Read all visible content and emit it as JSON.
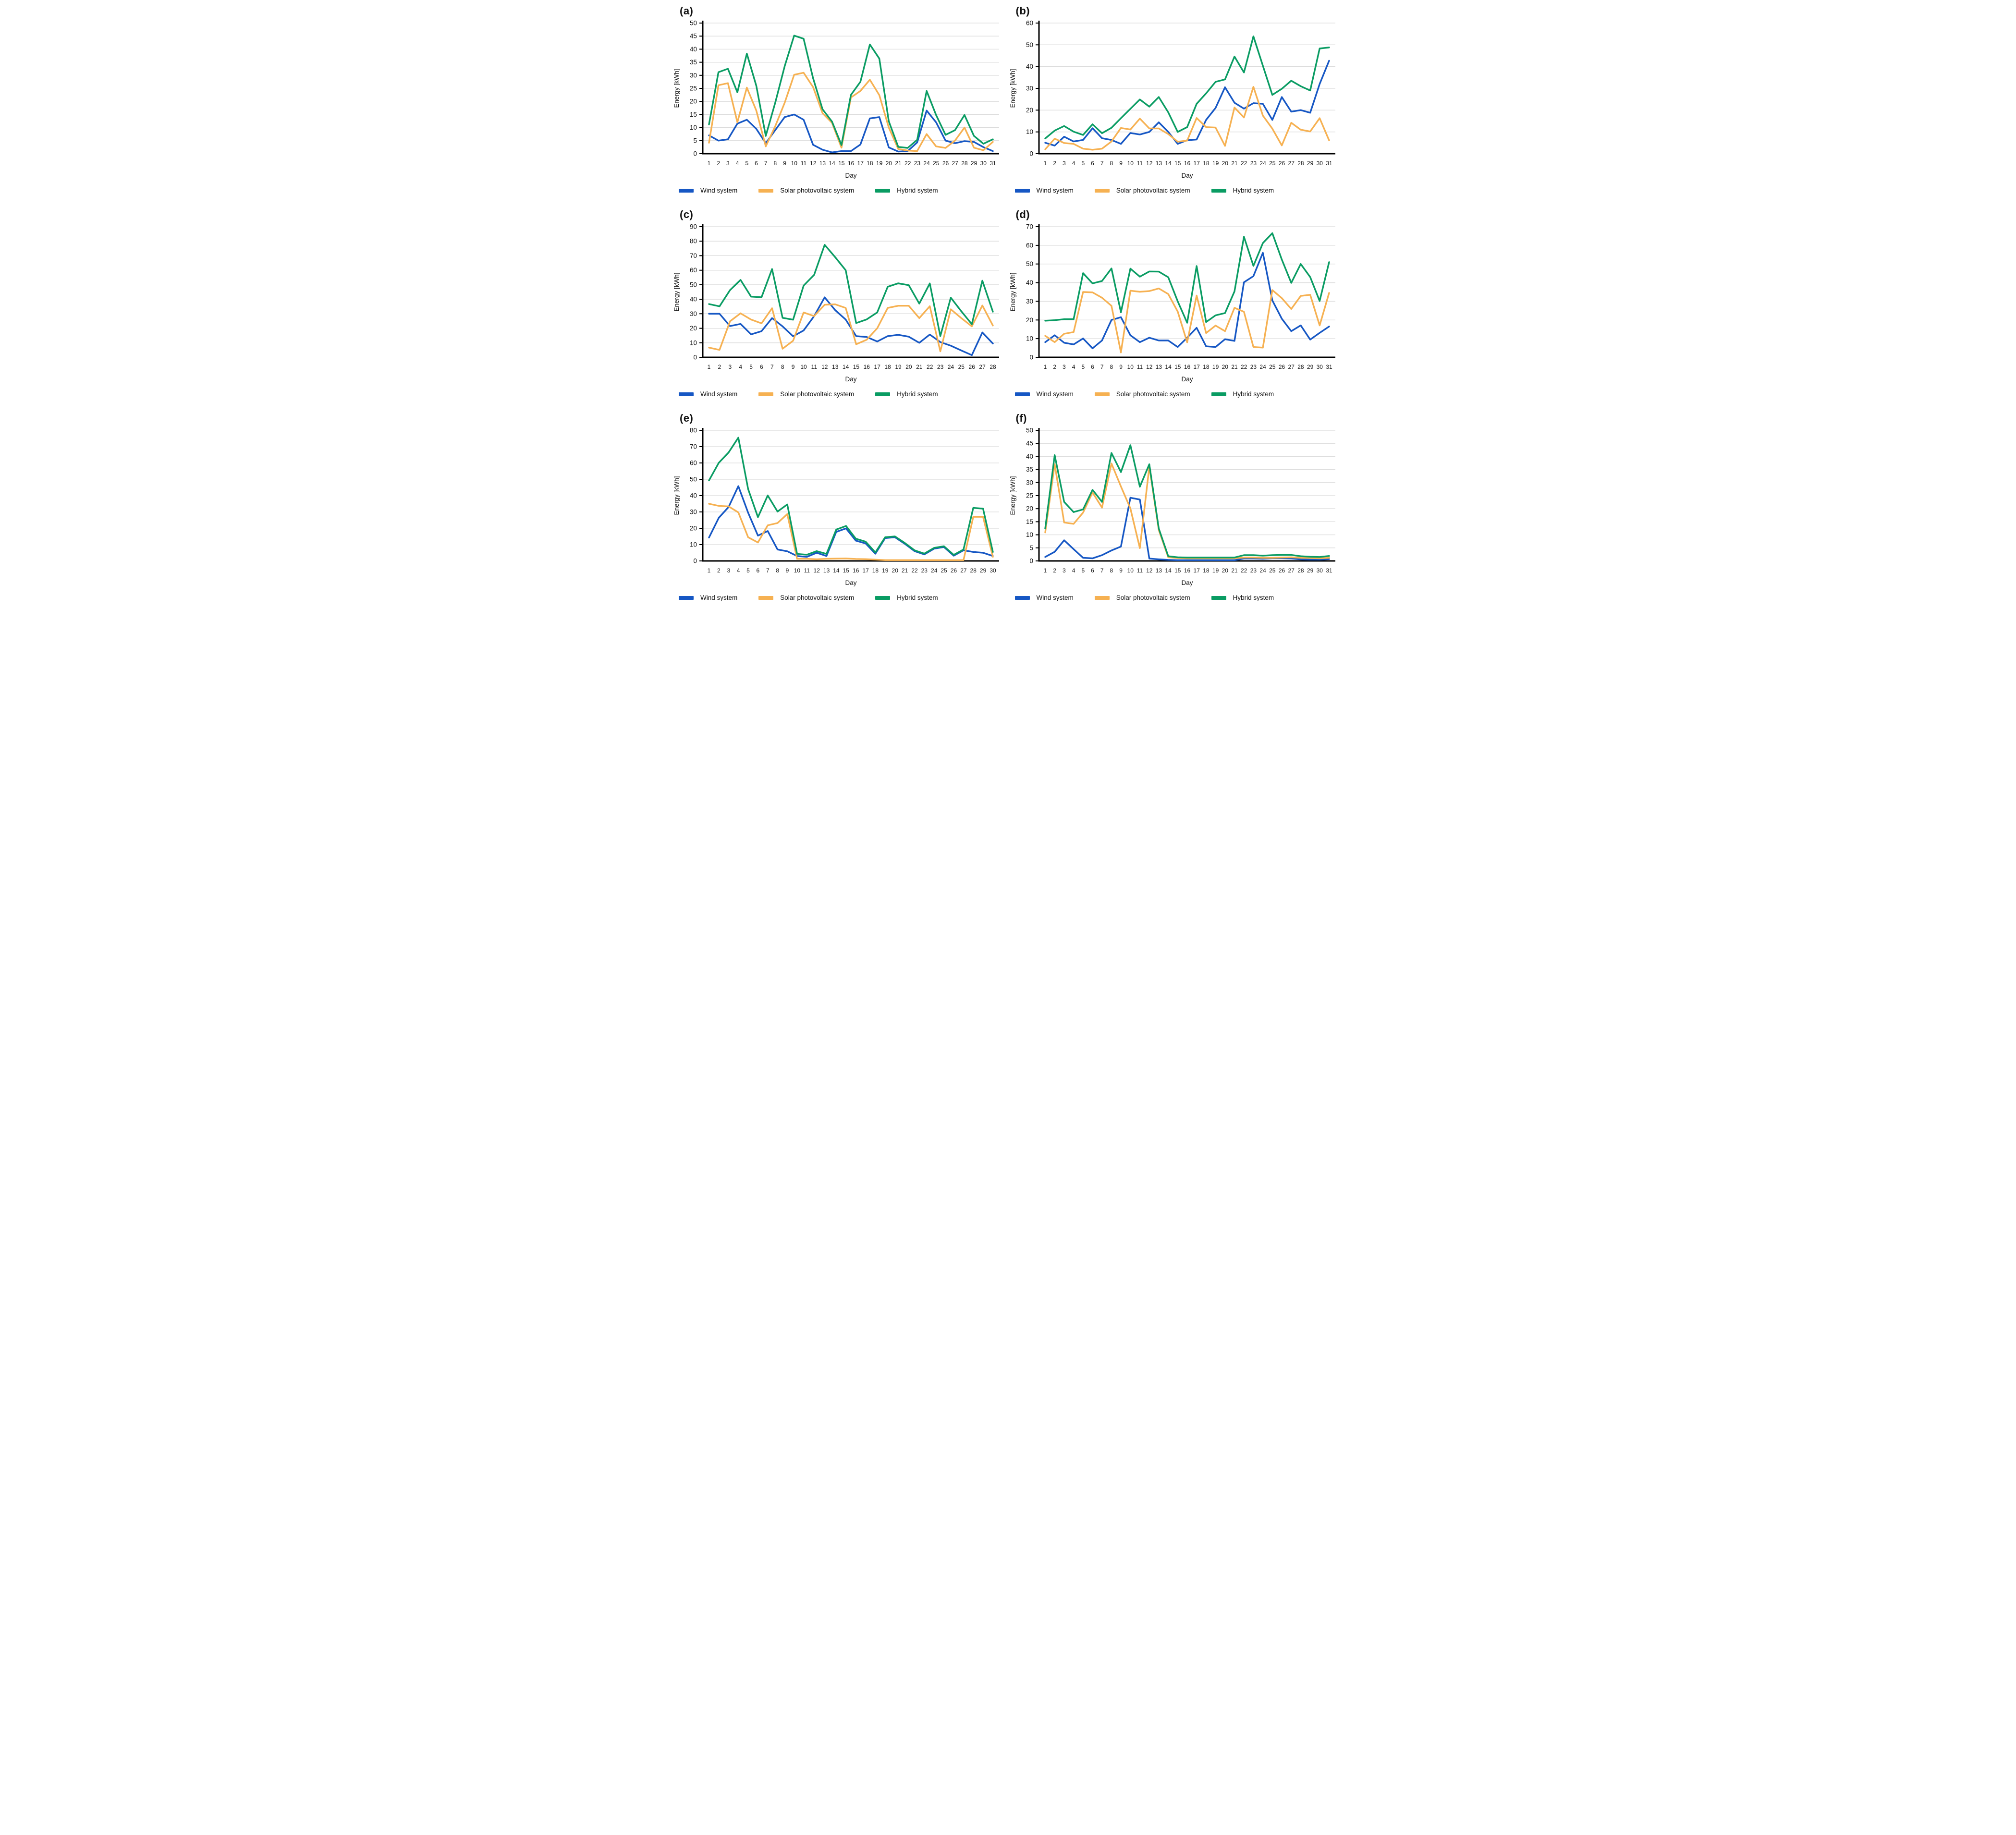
{
  "figure": {
    "xlabel": "Day",
    "ylabel": "Energy [kWh]",
    "legend": [
      "Wind system",
      "Solar photovoltaic system",
      "Hybrid system"
    ],
    "colors": {
      "wind": "#1657C4",
      "solar": "#F6B152",
      "hybrid": "#0A9C63"
    }
  },
  "chart_data": [
    {
      "type": "line",
      "panel": "(a)",
      "xlabel": "Day",
      "ylabel": "Energy [kWh]",
      "ylim": [
        0,
        50
      ],
      "ytick_step": 5,
      "grid": true,
      "legend_position": "bottom",
      "x": [
        1,
        2,
        3,
        4,
        5,
        6,
        7,
        8,
        9,
        10,
        11,
        12,
        13,
        14,
        15,
        16,
        17,
        18,
        19,
        20,
        21,
        22,
        23,
        24,
        25,
        26,
        27,
        28,
        29,
        30,
        31
      ],
      "series": [
        {
          "name": "Wind system",
          "color": "#1657C4",
          "values": [
            7,
            5,
            5.5,
            11.5,
            13,
            9.5,
            4,
            9,
            14,
            15,
            13,
            3.4,
            1.5,
            0.5,
            1,
            1,
            3.5,
            13.5,
            14,
            2.4,
            0.8,
            1,
            4.3,
            16.5,
            12,
            5,
            4,
            4.8,
            4.5,
            2.5,
            1
          ]
        },
        {
          "name": "Solar photovoltaic system",
          "color": "#F6B152",
          "values": [
            4.2,
            26.2,
            27,
            12,
            25.3,
            16.5,
            2.8,
            10.5,
            19.5,
            30.2,
            31,
            25.5,
            15.5,
            11.8,
            2.3,
            21.5,
            24,
            28.3,
            22.4,
            10,
            1.8,
            1.2,
            1,
            7.5,
            2.8,
            2.2,
            5,
            10,
            2.3,
            1.3,
            4.5
          ]
        },
        {
          "name": "Hybrid system",
          "color": "#0A9C63",
          "values": [
            11.2,
            31.2,
            32.5,
            23.5,
            38.3,
            26,
            6.8,
            19.5,
            33.5,
            45.2,
            44,
            28.9,
            17,
            12.3,
            3.3,
            22.5,
            27.5,
            41.8,
            36.4,
            12.4,
            2.6,
            2.2,
            5.3,
            24,
            14.8,
            7.2,
            9,
            14.8,
            6.8,
            3.8,
            5.5
          ]
        }
      ]
    },
    {
      "type": "line",
      "panel": "(b)",
      "xlabel": "Day",
      "ylabel": "Energy [kWh]",
      "ylim": [
        0,
        60
      ],
      "ytick_step": 10,
      "grid": true,
      "legend_position": "bottom",
      "x": [
        1,
        2,
        3,
        4,
        5,
        6,
        7,
        8,
        9,
        10,
        11,
        12,
        13,
        14,
        15,
        16,
        17,
        18,
        19,
        20,
        21,
        22,
        23,
        24,
        25,
        26,
        27,
        28,
        29,
        30,
        31
      ],
      "series": [
        {
          "name": "Wind system",
          "color": "#1657C4",
          "values": [
            5,
            3.7,
            7.8,
            5.6,
            6.3,
            11.7,
            7.1,
            6.3,
            4.5,
            9.5,
            8.8,
            10,
            14.4,
            10,
            4.5,
            6.2,
            6.5,
            15.5,
            21,
            30.5,
            23.4,
            20.7,
            23.2,
            22.9,
            15.5,
            26,
            19.3,
            20,
            18.8,
            32,
            42.7
          ]
        },
        {
          "name": "Solar photovoltaic system",
          "color": "#F6B152",
          "values": [
            2,
            6.9,
            4.9,
            4.5,
            2.3,
            1.8,
            2.3,
            5.6,
            11.8,
            11.1,
            16.1,
            11.6,
            11.6,
            9,
            5.5,
            6,
            16.4,
            12.2,
            12,
            3.6,
            21.2,
            16.6,
            30.7,
            17.5,
            11.5,
            3.8,
            14.2,
            11,
            10.2,
            16.3,
            6.1
          ]
        },
        {
          "name": "Hybrid system",
          "color": "#0A9C63",
          "values": [
            7,
            10.6,
            12.7,
            10.1,
            8.6,
            13.5,
            9.4,
            11.9,
            16.3,
            20.6,
            24.9,
            21.6,
            26,
            19,
            10,
            12.2,
            22.9,
            27.7,
            33,
            34.1,
            44.6,
            37.3,
            53.9,
            40.4,
            27,
            29.8,
            33.5,
            31,
            29,
            48.3,
            48.8
          ]
        }
      ]
    },
    {
      "type": "line",
      "panel": "(c)",
      "xlabel": "Day",
      "ylabel": "Energy [kWh]",
      "ylim": [
        0,
        90
      ],
      "ytick_step": 10,
      "grid": true,
      "legend_position": "bottom",
      "x": [
        1,
        2,
        3,
        4,
        5,
        6,
        7,
        8,
        9,
        10,
        11,
        12,
        13,
        14,
        15,
        16,
        17,
        18,
        19,
        20,
        21,
        22,
        23,
        24,
        25,
        26,
        27,
        28
      ],
      "series": [
        {
          "name": "Wind system",
          "color": "#1657C4",
          "values": [
            30,
            30,
            21.5,
            23,
            15.8,
            18,
            27,
            21.3,
            14.5,
            18.5,
            28.4,
            41.3,
            32.5,
            26,
            14.6,
            14,
            10.9,
            14.6,
            15.5,
            14.2,
            10,
            15.7,
            10.5,
            8,
            4.7,
            1.5,
            17.1,
            9.5
          ]
        },
        {
          "name": "Solar photovoltaic system",
          "color": "#F6B152",
          "values": [
            6.7,
            5.1,
            24.8,
            30.3,
            26,
            23.4,
            33.8,
            5.9,
            11.4,
            30.9,
            28.4,
            36.2,
            36.5,
            34,
            9,
            12.1,
            20,
            34,
            35.5,
            35.5,
            27,
            35.2,
            4.1,
            33.1,
            27,
            21.3,
            35.7,
            21.9
          ]
        },
        {
          "name": "Hybrid system",
          "color": "#0A9C63",
          "values": [
            36.7,
            35.1,
            46.3,
            53.3,
            41.8,
            41.4,
            60.8,
            27.2,
            25.9,
            49.4,
            56.8,
            77.5,
            69,
            60,
            23.6,
            26.1,
            30.9,
            48.6,
            51,
            49.7,
            37,
            50.9,
            14.6,
            41.1,
            31.7,
            22.8,
            52.8,
            31.4
          ]
        }
      ]
    },
    {
      "type": "line",
      "panel": "(d)",
      "xlabel": "Day",
      "ylabel": "Energy [kWh]",
      "ylim": [
        0,
        70
      ],
      "ytick_step": 10,
      "grid": true,
      "legend_position": "bottom",
      "x": [
        1,
        2,
        3,
        4,
        5,
        6,
        7,
        8,
        9,
        10,
        11,
        12,
        13,
        14,
        15,
        16,
        17,
        18,
        19,
        20,
        21,
        22,
        23,
        24,
        25,
        26,
        27,
        28,
        29,
        30,
        31
      ],
      "series": [
        {
          "name": "Wind system",
          "color": "#1657C4",
          "values": [
            8.1,
            11.8,
            7.8,
            6.9,
            10.1,
            4.8,
            9,
            20,
            21.5,
            11.8,
            8.1,
            10.5,
            9,
            9,
            5.5,
            10.5,
            15.8,
            5.9,
            5.5,
            9.7,
            8.8,
            40.2,
            43.5,
            56,
            30.5,
            20.7,
            14,
            17.1,
            9.5,
            13.1,
            16.5
          ]
        },
        {
          "name": "Solar photovoltaic system",
          "color": "#F6B152",
          "values": [
            11.5,
            8.1,
            12.6,
            13.5,
            35,
            34.8,
            31.9,
            27.6,
            2.6,
            35.7,
            35.1,
            35.5,
            36.9,
            33.9,
            24.5,
            8,
            33.1,
            13,
            17,
            14,
            26.5,
            24.4,
            5.5,
            5.2,
            36,
            31.7,
            25.9,
            32.9,
            33.5,
            17.1,
            34.5
          ]
        },
        {
          "name": "Hybrid system",
          "color": "#0A9C63",
          "values": [
            19.6,
            19.9,
            20.4,
            20.4,
            45.1,
            39.6,
            40.9,
            47.6,
            24.1,
            47.5,
            43.2,
            46,
            45.9,
            42.9,
            30,
            18.5,
            48.9,
            18.9,
            22.5,
            23.7,
            35.3,
            64.6,
            49,
            61.2,
            66.5,
            52.4,
            39.9,
            50,
            43,
            30.2,
            51
          ]
        }
      ]
    },
    {
      "type": "line",
      "panel": "(e)",
      "xlabel": "Day",
      "ylabel": "Energy [kWh]",
      "ylim": [
        0,
        80
      ],
      "ytick_step": 10,
      "grid": true,
      "legend_position": "bottom",
      "x": [
        1,
        2,
        3,
        4,
        5,
        6,
        7,
        8,
        9,
        10,
        11,
        12,
        13,
        14,
        15,
        16,
        17,
        18,
        19,
        20,
        21,
        22,
        23,
        24,
        25,
        26,
        27,
        28,
        29,
        30
      ],
      "series": [
        {
          "name": "Wind system",
          "color": "#1657C4",
          "values": [
            14.3,
            26.4,
            33,
            45.8,
            29.5,
            15.5,
            18.3,
            7,
            5.9,
            3,
            2.5,
            5,
            3,
            17.8,
            19.9,
            12.4,
            10.7,
            4.4,
            14,
            14.5,
            10.5,
            6,
            4,
            7.5,
            8.5,
            3.2,
            6.5,
            5.5,
            5,
            3
          ]
        },
        {
          "name": "Solar photovoltaic system",
          "color": "#F6B152",
          "values": [
            35,
            33.7,
            33.4,
            29.7,
            14.5,
            11.3,
            21.8,
            23.2,
            28.7,
            1.3,
            1.3,
            1,
            1.3,
            1.4,
            1.5,
            1.2,
            1.1,
            0.8,
            0.5,
            0.5,
            0.5,
            0.5,
            0.5,
            0.5,
            0.5,
            0.5,
            0.5,
            27,
            27,
            2.5
          ]
        },
        {
          "name": "Hybrid system",
          "color": "#0A9C63",
          "values": [
            49.3,
            60.1,
            66.4,
            75.5,
            44,
            26.8,
            40.1,
            30.2,
            34.6,
            4.3,
            3.8,
            6,
            4.3,
            19.2,
            21.4,
            13.6,
            11.8,
            5.2,
            14.5,
            15,
            11,
            6.5,
            4.5,
            8,
            9,
            3.7,
            7,
            32.5,
            32,
            5.5
          ]
        }
      ]
    },
    {
      "type": "line",
      "panel": "(f)",
      "xlabel": "Day",
      "ylabel": "Energy [kWh]",
      "ylim": [
        0,
        50
      ],
      "ytick_step": 5,
      "grid": true,
      "legend_position": "bottom",
      "x": [
        1,
        2,
        3,
        4,
        5,
        6,
        7,
        8,
        9,
        10,
        11,
        12,
        13,
        14,
        15,
        16,
        17,
        18,
        19,
        20,
        21,
        22,
        23,
        24,
        25,
        26,
        27,
        28,
        29,
        30,
        31
      ],
      "series": [
        {
          "name": "Wind system",
          "color": "#1657C4",
          "values": [
            1.5,
            3.5,
            7.9,
            4.5,
            1.2,
            1,
            2.2,
            4,
            5.5,
            24.2,
            23.5,
            0.9,
            0.6,
            0.4,
            0.3,
            0.3,
            0.3,
            0.3,
            0.3,
            0.3,
            0.3,
            0.9,
            0.9,
            0.8,
            1,
            1,
            0.9,
            0.6,
            0.5,
            0.5,
            0.7
          ]
        },
        {
          "name": "Solar photovoltaic system",
          "color": "#F6B152",
          "values": [
            10.9,
            37,
            14.7,
            14.2,
            18.5,
            26.2,
            20.4,
            37.3,
            28.5,
            20.1,
            4.9,
            36.1,
            11.8,
            1.4,
            1.1,
            1,
            1,
            1,
            1,
            1,
            1,
            1.3,
            1.3,
            1.2,
            1.2,
            1.3,
            1.4,
            1.2,
            1.1,
            1,
            1.2
          ]
        },
        {
          "name": "Hybrid system",
          "color": "#0A9C63",
          "values": [
            12.4,
            40.5,
            22.6,
            18.7,
            19.7,
            27.2,
            22.6,
            41.3,
            34,
            44.3,
            28.4,
            37,
            12.4,
            1.8,
            1.4,
            1.3,
            1.3,
            1.3,
            1.3,
            1.3,
            1.3,
            2.2,
            2.2,
            2,
            2.2,
            2.3,
            2.3,
            1.8,
            1.6,
            1.5,
            1.9
          ]
        }
      ]
    }
  ]
}
